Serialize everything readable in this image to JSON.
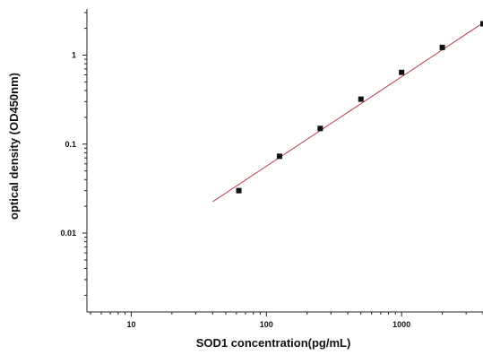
{
  "chart_data": {
    "type": "scatter",
    "title": "",
    "xlabel": "SOD1 concentration(pg/mL)",
    "ylabel": "optical density (OD450nm)",
    "x_scale": "log",
    "y_scale": "log",
    "xlim": [
      4.7,
      4000
    ],
    "ylim": [
      0.0013,
      3.3
    ],
    "x_ticks": [
      10,
      100,
      1000
    ],
    "x_tick_labels": [
      "10",
      "100",
      "1000"
    ],
    "y_ticks": [
      0.01,
      0.1,
      1
    ],
    "y_tick_labels": [
      "0.01",
      "0.1",
      "1"
    ],
    "grid": false,
    "legend": "none",
    "series": [
      {
        "type": "scatter",
        "x": [
          62.5,
          125,
          250,
          500,
          1000,
          2000,
          4000
        ],
        "y": [
          0.03,
          0.073,
          0.15,
          0.32,
          0.64,
          1.22,
          2.25
        ]
      },
      {
        "type": "line",
        "x": [
          40,
          4000
        ],
        "y": [
          0.0225,
          2.3
        ]
      }
    ],
    "colors": {
      "axis": "#222222",
      "marker": "#111111",
      "fit_line": "#b84a52"
    }
  }
}
